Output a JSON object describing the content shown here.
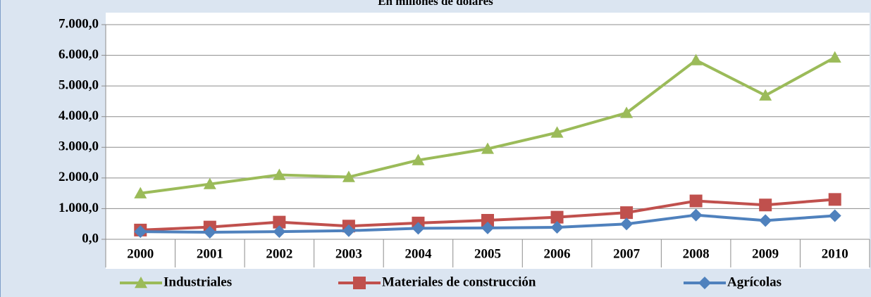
{
  "chart_data": {
    "type": "line",
    "title": "En millones de dólares",
    "categories": [
      "2000",
      "2001",
      "2002",
      "2003",
      "2004",
      "2005",
      "2006",
      "2007",
      "2008",
      "2009",
      "2010"
    ],
    "series": [
      {
        "name": "Industriales",
        "color": "#9bbb59",
        "marker": "triangle",
        "values": [
          1500,
          1800,
          2100,
          2030,
          2580,
          2950,
          3480,
          4120,
          5840,
          4690,
          5930
        ]
      },
      {
        "name": "Materiales de construcción",
        "color": "#c0504d",
        "marker": "square",
        "values": [
          300,
          400,
          560,
          430,
          530,
          620,
          720,
          870,
          1250,
          1120,
          1300
        ]
      },
      {
        "name": "Agrícolas",
        "color": "#4f81bd",
        "marker": "diamond",
        "values": [
          250,
          230,
          250,
          280,
          360,
          370,
          390,
          500,
          790,
          610,
          770
        ]
      }
    ],
    "ylim": [
      0,
      7000
    ],
    "yticks": [
      {
        "value": 0,
        "label": "0,0"
      },
      {
        "value": 1000,
        "label": "1.000,0"
      },
      {
        "value": 2000,
        "label": "2.000,0"
      },
      {
        "value": 3000,
        "label": "3.000,0"
      },
      {
        "value": 4000,
        "label": "4.000,0"
      },
      {
        "value": 5000,
        "label": "5.000,0"
      },
      {
        "value": 6000,
        "label": "6.000,0"
      },
      {
        "value": 7000,
        "label": "7.000,0"
      }
    ],
    "grid": true,
    "legend": "bottom"
  }
}
